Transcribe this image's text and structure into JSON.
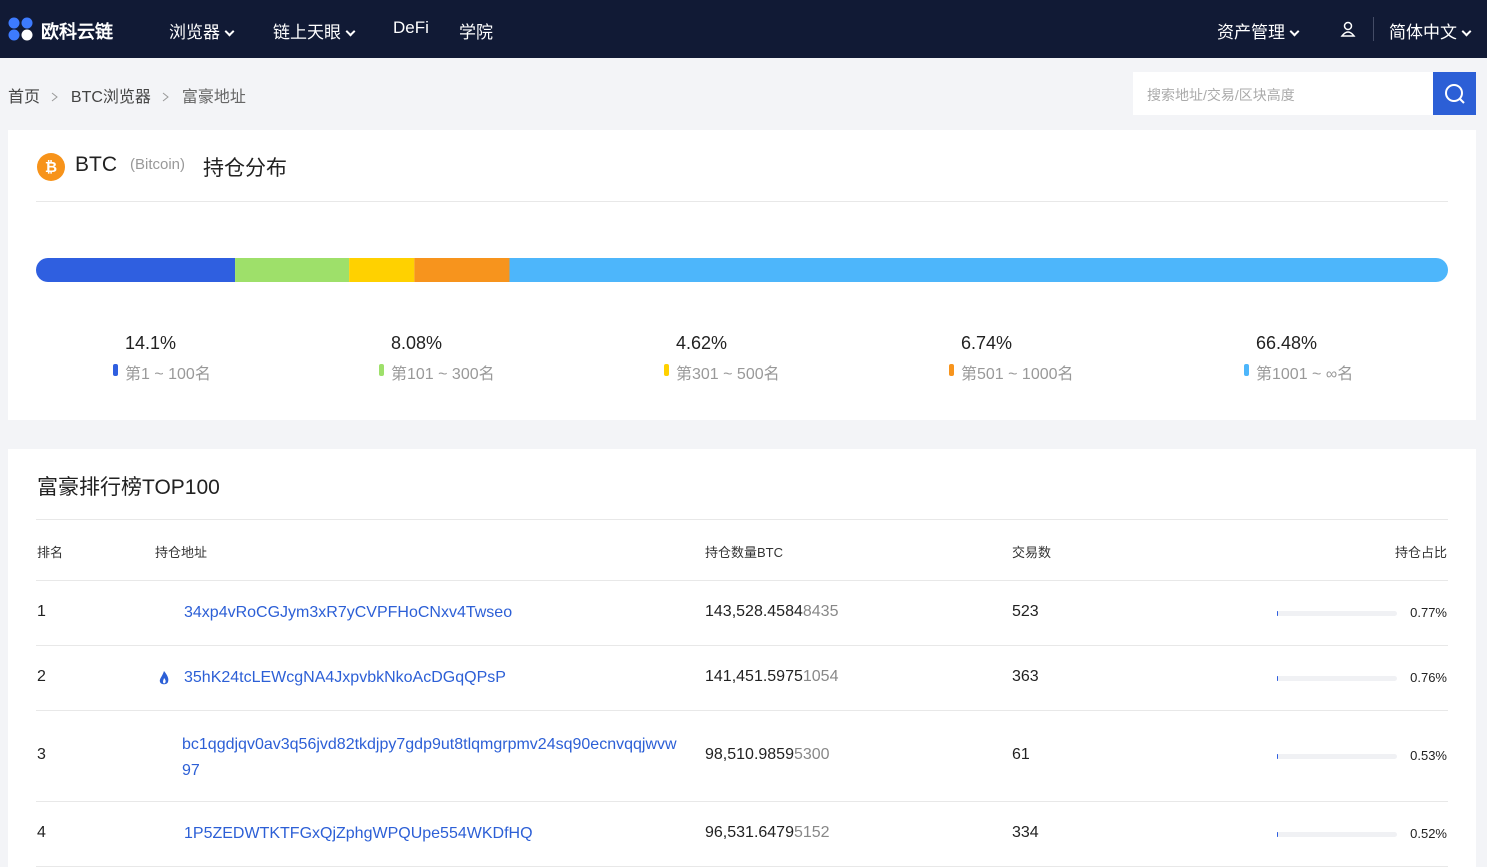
{
  "nav": {
    "logo": "欧科云链",
    "items": [
      "浏览器",
      "链上天眼",
      "DeFi",
      "学院"
    ],
    "asset": "资产管理",
    "lang": "简体中文"
  },
  "breadcrumb": [
    "首页",
    "BTC浏览器",
    "富豪地址"
  ],
  "search": {
    "placeholder": "搜索地址/交易/区块高度"
  },
  "distribution": {
    "symbol": "BTC",
    "name": "(Bitcoin)",
    "title": "持仓分布",
    "segments": [
      {
        "value": 14.1,
        "label": "14.1%",
        "range": "第1 ~ 100名",
        "color": "#2f5fe0"
      },
      {
        "value": 8.08,
        "label": "8.08%",
        "range": "第101 ~ 300名",
        "color": "#9ee06a"
      },
      {
        "value": 4.62,
        "label": "4.62%",
        "range": "第301 ~ 500名",
        "color": "#ffd100"
      },
      {
        "value": 6.74,
        "label": "6.74%",
        "range": "第501 ~ 1000名",
        "color": "#f7941d"
      },
      {
        "value": 66.48,
        "label": "66.48%",
        "range": "第1001 ~ ∞名",
        "color": "#4db6fb"
      }
    ]
  },
  "ranking": {
    "title": "富豪排行榜TOP100",
    "columns": [
      "排名",
      "持仓地址",
      "持仓数量BTC",
      "交易数",
      "持仓占比"
    ],
    "rows": [
      {
        "rank": 1,
        "address": "34xp4vRoCGJym3xR7yCVPFHoCNxv4Twseo",
        "amount": "143,528.4584",
        "amount_tail": "8435",
        "tx": 523,
        "share": 0.77,
        "share_label": "0.77%"
      },
      {
        "rank": 2,
        "address": "35hK24tcLEWcgNA4JxpvbkNkoAcDGqQPsP",
        "amount": "141,451.5975",
        "amount_tail": "1054",
        "tx": 363,
        "share": 0.76,
        "share_label": "0.76%"
      },
      {
        "rank": 3,
        "address": "bc1qgdjqv0av3q56jvd82tkdjpy7gdp9ut8tlqmgrpmv24sq90ecnvqqjwvw97",
        "amount": "98,510.9859",
        "amount_tail": "5300",
        "tx": 61,
        "share": 0.53,
        "share_label": "0.53%"
      },
      {
        "rank": 4,
        "address": "1P5ZEDWTKTFGxQjZphgWPQUpe554WKDfHQ",
        "amount": "96,531.6479",
        "amount_tail": "5152",
        "tx": 334,
        "share": 0.52,
        "share_label": "0.52%"
      }
    ]
  }
}
